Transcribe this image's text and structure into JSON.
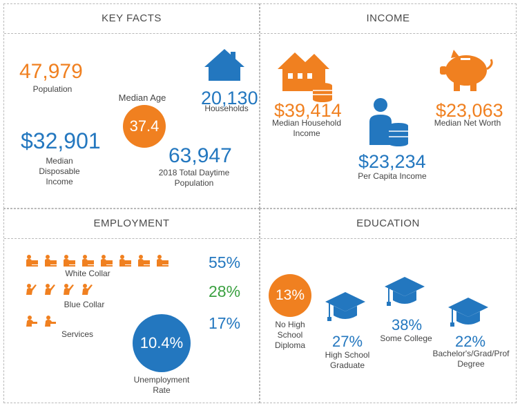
{
  "colors": {
    "orange": "#f08020",
    "blue": "#2377bf",
    "green": "#3aa040"
  },
  "key_facts": {
    "title": "KEY FACTS",
    "population": {
      "value": "47,979",
      "label": "Population"
    },
    "median_age": {
      "label": "Median Age",
      "value": "37.4"
    },
    "households": {
      "value": "20,130",
      "label": "Households"
    },
    "median_disposable_income": {
      "value": "$32,901",
      "label": "Median Disposable Income"
    },
    "daytime_population": {
      "value": "63,947",
      "label": "2018 Total Daytime Population"
    }
  },
  "income": {
    "title": "INCOME",
    "median_household_income": {
      "value": "$39,414",
      "label": "Median Household Income"
    },
    "per_capita_income": {
      "value": "$23,234",
      "label": "Per Capita Income"
    },
    "median_net_worth": {
      "value": "$23,063",
      "label": "Median Net Worth"
    }
  },
  "employment": {
    "title": "EMPLOYMENT",
    "white_collar": {
      "label": "White Collar",
      "percent": "55%"
    },
    "blue_collar": {
      "label": "Blue Collar",
      "percent": "28%"
    },
    "services": {
      "label": "Services",
      "percent": "17%"
    },
    "unemployment": {
      "value": "10.4%",
      "label": "Unemployment Rate"
    }
  },
  "education": {
    "title": "EDUCATION",
    "no_high_school": {
      "value": "13%",
      "label": "No High School Diploma"
    },
    "high_school": {
      "value": "27%",
      "label": "High School Graduate"
    },
    "some_college": {
      "value": "38%",
      "label": "Some College"
    },
    "bachelors": {
      "value": "22%",
      "label": "Bachelor's/Grad/Prof Degree"
    }
  }
}
